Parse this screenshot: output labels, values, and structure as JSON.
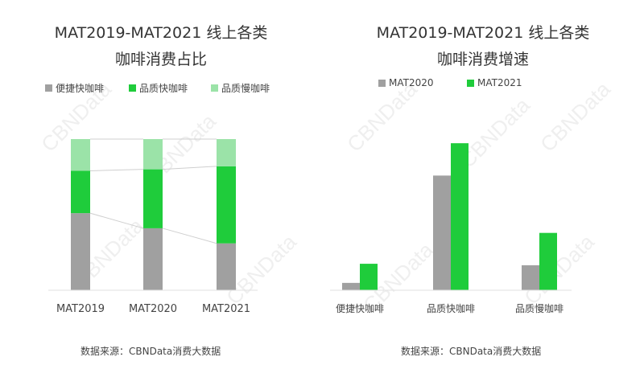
{
  "watermark": "CBNData",
  "chart_data": [
    {
      "type": "bar",
      "stacked": true,
      "title_line1": "MAT2019-MAT2021 线上各类",
      "title_line2": "咖啡消费占比",
      "categories": [
        "MAT2019",
        "MAT2020",
        "MAT2021"
      ],
      "series": [
        {
          "name": "便捷快咖啡",
          "color": "#a0a0a0",
          "values": [
            51,
            41,
            31
          ]
        },
        {
          "name": "品质快咖啡",
          "color": "#1fcc3b",
          "values": [
            28,
            39,
            51
          ]
        },
        {
          "name": "品质慢咖啡",
          "color": "#9be3a8",
          "values": [
            21,
            20,
            18
          ]
        }
      ],
      "ylim": [
        0,
        100
      ],
      "source": "数据来源：CBNData消费大数据"
    },
    {
      "type": "bar",
      "title_line1": "MAT2019-MAT2021 线上各类",
      "title_line2": "咖啡消费增速",
      "categories": [
        "便捷快咖啡",
        "品质快咖啡",
        "品质慢咖啡"
      ],
      "series": [
        {
          "name": "MAT2020",
          "color": "#a0a0a0",
          "values": [
            5,
            78,
            17
          ]
        },
        {
          "name": "MAT2021",
          "color": "#1fcc3b",
          "values": [
            18,
            100,
            39
          ]
        }
      ],
      "ylim": [
        0,
        105
      ],
      "source": "数据来源：CBNData消费大数据"
    }
  ]
}
